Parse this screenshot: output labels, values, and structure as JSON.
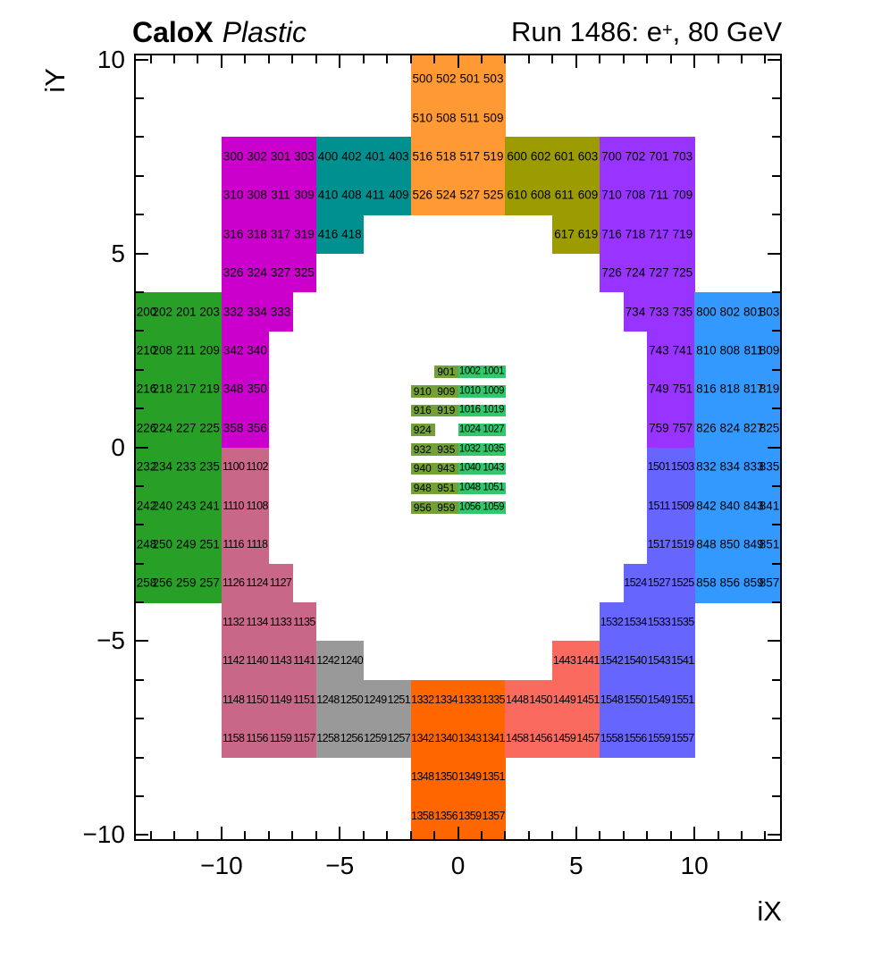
{
  "header": {
    "title_left_bold": "CaloX",
    "title_left_italic": "Plastic",
    "title_right_prefix": "Run 1486: e",
    "title_right_sup": "+",
    "title_right_suffix": ", 80 GeV"
  },
  "chart_data": {
    "type": "heatmap",
    "title": "Run 1486: e+, 80 GeV",
    "subtitle": "CaloX Plastic",
    "xlabel": "iX",
    "ylabel": "iY",
    "xlim": [
      -13.7,
      13.7
    ],
    "ylim": [
      -10.15,
      10.15
    ],
    "grid": false,
    "xticks": {
      "major": [
        -10,
        -5,
        0,
        5,
        10
      ],
      "labels": [
        "−10",
        "−5",
        "0",
        "5",
        "10"
      ],
      "minor_from": -13,
      "minor_to": 13
    },
    "yticks": {
      "major": [
        -10,
        -5,
        0,
        5,
        10
      ],
      "labels": [
        "−10",
        "−5",
        "0",
        "5",
        "10"
      ],
      "minor_from": -10,
      "minor_to": 10
    },
    "frame_color": "#000000",
    "label_color": "#000000",
    "regions": [
      {
        "name": "sector-500-top-orange",
        "color": "#FF9933",
        "fs": 13.5,
        "ls": 0,
        "h": 1,
        "rows": [
          [
            9,
            -2,
            "500 502 501 503"
          ],
          [
            8,
            -2,
            "510 508 511 509"
          ],
          [
            7,
            -2,
            "516 518 517 519"
          ],
          [
            6,
            -2,
            "526 524 527 525"
          ]
        ],
        "bleed": [
          [
            -2,
            10,
            4,
            0.3
          ]
        ]
      },
      {
        "name": "sector-300-magenta",
        "color": "#CC00CC",
        "fs": 13.5,
        "ls": 0,
        "h": 1,
        "rows": [
          [
            7,
            -10,
            "300 302 301 303"
          ],
          [
            6,
            -10,
            "310 308 311 309"
          ],
          [
            5,
            -10,
            "316 318 317 319"
          ],
          [
            4,
            -10,
            "326 324 327 325"
          ],
          [
            3,
            -10,
            "332 334 333"
          ],
          [
            2,
            -10,
            "342 340"
          ],
          [
            1,
            -10,
            "348 350"
          ],
          [
            0,
            -10,
            "358 356"
          ]
        ]
      },
      {
        "name": "sector-400-teal",
        "color": "#009090",
        "fs": 13.5,
        "ls": 0,
        "h": 1,
        "rows": [
          [
            7,
            -6,
            "400 402 401 403"
          ],
          [
            6,
            -6,
            "410 408 411 409"
          ],
          [
            5,
            -6,
            "416 418"
          ]
        ]
      },
      {
        "name": "sector-600-olive",
        "color": "#9C9C00",
        "fs": 13.5,
        "ls": 0,
        "h": 1,
        "rows": [
          [
            7,
            2,
            "600 602 601 603"
          ],
          [
            6,
            2,
            "610 608 611 609"
          ],
          [
            5,
            4,
            "617 619"
          ]
        ]
      },
      {
        "name": "sector-700-violet",
        "color": "#9933FF",
        "fs": 13.5,
        "ls": 0,
        "h": 1,
        "rows": [
          [
            7,
            6,
            "700 702 701 703"
          ],
          [
            6,
            6,
            "710 708 711 709"
          ],
          [
            5,
            6,
            "716 718 717 719"
          ],
          [
            4,
            6,
            "726 724 727 725"
          ],
          [
            3,
            7,
            "734 733 735"
          ],
          [
            2,
            8,
            "743 741"
          ],
          [
            1,
            8,
            "749 751"
          ],
          [
            0,
            8,
            "759 757"
          ]
        ]
      },
      {
        "name": "sector-200-green",
        "color": "#28A028",
        "fs": 13.5,
        "ls": 0,
        "h": 1,
        "rows": [
          [
            3,
            -14,
            "200 202 201 203"
          ],
          [
            2,
            -14,
            "210 208 211 209"
          ],
          [
            1,
            -14,
            "216 218 217 219"
          ],
          [
            0,
            -14,
            "226 224 227 225"
          ],
          [
            -1,
            -14,
            "232 234 233 235"
          ],
          [
            -2,
            -14,
            "242 240 243 241"
          ],
          [
            -3,
            -14,
            "248 250 249 251"
          ],
          [
            -4,
            -14,
            "258 256 259 257"
          ]
        ]
      },
      {
        "name": "sector-800-blue",
        "color": "#3399FF",
        "fs": 13.5,
        "ls": 0,
        "h": 1,
        "rows": [
          [
            3,
            10,
            "800 802 801 803"
          ],
          [
            2,
            10,
            "810 808 811 809"
          ],
          [
            1,
            10,
            "816 818 817 819"
          ],
          [
            0,
            10,
            "826 824 827 825"
          ],
          [
            -1,
            10,
            "832 834 833 835"
          ],
          [
            -2,
            10,
            "842 840 843 841"
          ],
          [
            -3,
            10,
            "848 850 849 851"
          ],
          [
            -4,
            10,
            "858 856 859 857"
          ]
        ]
      },
      {
        "name": "sector-1100-pink",
        "color": "#C96789",
        "fs": 12.5,
        "ls": -0.6,
        "h": 1,
        "rows": [
          [
            -1,
            -10,
            "1100 1102"
          ],
          [
            -2,
            -10,
            "1110 1108"
          ],
          [
            -3,
            -10,
            "1116 1118"
          ],
          [
            -4,
            -10,
            "1126 1124 1127"
          ],
          [
            -5,
            -10,
            "1132 1134 1133 1135"
          ],
          [
            -6,
            -10,
            "1142 1140 1143 1141"
          ],
          [
            -7,
            -10,
            "1148 1150 1149 1151"
          ],
          [
            -8,
            -10,
            "1158 1156 1159 1157"
          ]
        ]
      },
      {
        "name": "sector-1200-gray",
        "color": "#999999",
        "fs": 12.5,
        "ls": -0.6,
        "h": 1,
        "rows": [
          [
            -6,
            -6,
            "1242 1240"
          ],
          [
            -7,
            -6,
            "1248 1250 1249 1251"
          ],
          [
            -8,
            -6,
            "1258 1256 1259 1257"
          ]
        ]
      },
      {
        "name": "sector-1300-dark-orange",
        "color": "#FF6600",
        "fs": 12.5,
        "ls": -0.6,
        "h": 1,
        "rows": [
          [
            -7,
            -2,
            "1332 1334 1333 1335"
          ],
          [
            -8,
            -2,
            "1342 1340 1343 1341"
          ],
          [
            -9,
            -2,
            "1348 1350 1349 1351"
          ],
          [
            -10,
            -2,
            "1358 1356 1359 1357"
          ]
        ],
        "bleed": [
          [
            -2,
            -10.3,
            4,
            0.3
          ]
        ]
      },
      {
        "name": "sector-1400-salmon",
        "color": "#FA6A5F",
        "fs": 12.5,
        "ls": -0.6,
        "h": 1,
        "rows": [
          [
            -6,
            4,
            "1443 1441"
          ],
          [
            -7,
            2,
            "1448 1450 1449 1451"
          ],
          [
            -8,
            2,
            "1458 1456 1459 1457"
          ]
        ]
      },
      {
        "name": "sector-1500-blueviolet",
        "color": "#6666FF",
        "fs": 12.5,
        "ls": -0.6,
        "h": 1,
        "rows": [
          [
            -1,
            8,
            "1501 1503"
          ],
          [
            -2,
            8,
            "1511 1509"
          ],
          [
            -3,
            8,
            "1517 1519"
          ],
          [
            -4,
            7,
            "1524 1527 1525"
          ],
          [
            -5,
            6,
            "1532 1534 1533 1535"
          ],
          [
            -6,
            6,
            "1542 1540 1543 1541"
          ],
          [
            -7,
            6,
            "1548 1550 1549 1551"
          ],
          [
            -8,
            6,
            "1558 1556 1559 1557"
          ]
        ]
      },
      {
        "name": "core-900-olive-green",
        "color": "#73A037",
        "fs": 12,
        "ls": 0,
        "h": 0.3,
        "rows": [
          [
            1.8,
            -1,
            "901"
          ],
          [
            1.3,
            -2,
            "910 909"
          ],
          [
            0.8,
            -2,
            "916 919"
          ],
          [
            0.3,
            -2,
            "924"
          ],
          [
            -0.2,
            -2,
            "932 935"
          ],
          [
            -0.7,
            -2,
            "940 943"
          ],
          [
            -1.2,
            -2,
            "948 951"
          ],
          [
            -1.7,
            -2,
            "956 959"
          ]
        ]
      },
      {
        "name": "core-1000-bright-green",
        "color": "#30C868",
        "fs": 11.5,
        "ls": -0.5,
        "h": 0.3,
        "rows": [
          [
            1.8,
            0,
            "1002 1001"
          ],
          [
            1.3,
            0,
            "1010 1009"
          ],
          [
            0.8,
            0,
            "1016 1019"
          ],
          [
            0.3,
            0,
            "1024 1027"
          ],
          [
            -0.2,
            0,
            "1032 1035"
          ],
          [
            -0.7,
            0,
            "1040 1043"
          ],
          [
            -1.2,
            0,
            "1048 1051"
          ],
          [
            -1.7,
            0,
            "1056 1059"
          ]
        ]
      }
    ]
  }
}
